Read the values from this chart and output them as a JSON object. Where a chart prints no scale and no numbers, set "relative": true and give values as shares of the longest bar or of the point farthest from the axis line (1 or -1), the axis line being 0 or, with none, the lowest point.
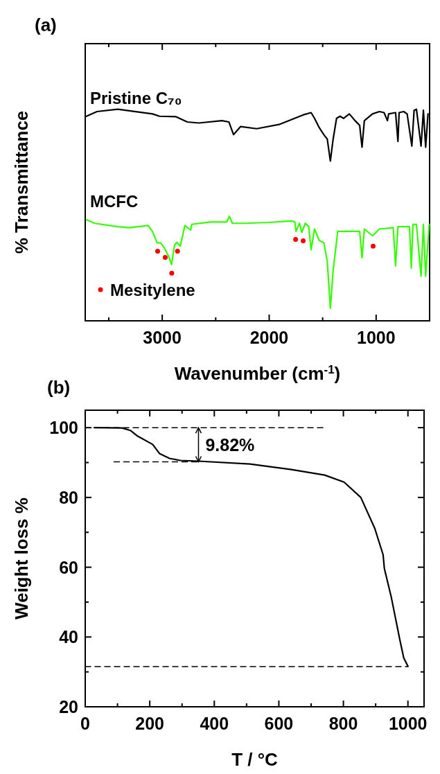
{
  "chart_data": [
    {
      "type": "line",
      "title": "(a)",
      "xlabel": "Wavenumber (cm$^{-1}$)",
      "ylabel": "% Transmittance",
      "relative": true,
      "legend": "bottom left",
      "xlim": [
        3720,
        500
      ],
      "xticks": [
        {
          "value": 3500,
          "label": null
        },
        3000,
        {
          "value": 2500,
          "label": null
        },
        2000,
        {
          "value": 1500,
          "label": null
        },
        1000
      ],
      "series": [
        {
          "name": "Pristine C₇₀",
          "color": "#000000",
          "x": [
            3708,
            3610,
            3416,
            3091,
            3026,
            2874,
            2766,
            2658,
            2442,
            2377,
            2333,
            2268,
            2117,
            1900,
            1684,
            1608,
            1576,
            1532,
            1489,
            1457,
            1428,
            1402,
            1370,
            1337,
            1305,
            1251,
            1197,
            1154,
            1132,
            1110,
            1034,
            969,
            926,
            894,
            883,
            818,
            796,
            785,
            742,
            710,
            666,
            645,
            623,
            580,
            558,
            537,
            515
          ],
          "values": [
            0.967,
            0.989,
            1,
            0.978,
            0.967,
            0.965,
            0.94,
            0.935,
            0.946,
            0.94,
            0.88,
            0.918,
            0.908,
            0.929,
            0.973,
            0.984,
            0.957,
            0.913,
            0.88,
            0.859,
            0.755,
            0.859,
            0.957,
            0.967,
            0.957,
            0.978,
            0.946,
            0.924,
            0.821,
            0.946,
            0.978,
            0.989,
            0.984,
            0.946,
            0.978,
            0.984,
            0.848,
            0.984,
            0.989,
            0.978,
            0.826,
            0.995,
            1,
            0.826,
            0.995,
            0.821,
            0.978
          ]
        },
        {
          "name": "MCFC",
          "color": "#33ff00",
          "x": [
            3708,
            3632,
            3416,
            3307,
            3134,
            3091,
            3048,
            3015,
            2983,
            2939,
            2913,
            2885,
            2864,
            2831,
            2788,
            2734,
            2723,
            2550,
            2398,
            2372,
            2344,
            2225,
            2008,
            1792,
            1760,
            1749,
            1716,
            1695,
            1662,
            1630,
            1608,
            1576,
            1532,
            1489,
            1457,
            1428,
            1402,
            1359,
            1251,
            1154,
            1132,
            1110,
            1034,
            1013,
            969,
            840,
            818,
            796,
            688,
            671,
            656,
            623,
            580,
            558,
            537,
            504
          ],
          "values": [
            0.478,
            0.461,
            0.445,
            0.44,
            0.451,
            0.423,
            0.369,
            0.369,
            0.347,
            0.304,
            0.266,
            0.358,
            0.371,
            0.353,
            0.451,
            0.429,
            0.456,
            0.467,
            0.467,
            0.494,
            0.461,
            0.461,
            0.465,
            0.472,
            0.467,
            0.423,
            0.461,
            0.418,
            0.461,
            0.445,
            0.336,
            0.434,
            0.38,
            0.369,
            0.282,
            0.059,
            0.238,
            0.423,
            0.423,
            0.423,
            0.298,
            0.434,
            0.402,
            0.412,
            0.434,
            0.44,
            0.26,
            0.445,
            0.445,
            0.249,
            0.456,
            0.456,
            0.211,
            0.456,
            0.211,
            0.456
          ]
        },
        {
          "name": "Mesitylene",
          "type": "scatter",
          "marker": "circle",
          "color": "#ff0000",
          "x": [
            3043,
            2972,
            2911,
            2857,
            1753,
            1682,
            1028
          ],
          "values": [
            0.329,
            0.3,
            0.225,
            0.329,
            0.385,
            0.378,
            0.353
          ]
        }
      ]
    },
    {
      "type": "line",
      "title": "(b)",
      "xlabel": "T / °C",
      "ylabel": "Weight loss %",
      "xlim": [
        0,
        1050
      ],
      "xticks": [
        0,
        {
          "value": 100,
          "label": null
        },
        200,
        {
          "value": 300,
          "label": null
        },
        400,
        {
          "value": 500,
          "label": null
        },
        600,
        {
          "value": 700,
          "label": null
        },
        800,
        {
          "value": 900,
          "label": null
        },
        1000
      ],
      "ylim": [
        20,
        105
      ],
      "yticks": [
        20,
        {
          "value": 30,
          "label": null
        },
        40,
        {
          "value": 50,
          "label": null
        },
        60,
        {
          "value": 70,
          "label": null
        },
        80,
        {
          "value": 90,
          "label": null
        },
        100
      ],
      "annotations": [
        "9.82%"
      ],
      "series": [
        {
          "color": "#000000",
          "x": [
            28,
            114,
            140,
            162,
            209,
            230,
            261,
            295,
            351,
            510,
            639,
            742,
            802,
            854,
            897,
            923,
            927,
            948,
            974,
            987,
            1000
          ],
          "values": [
            100,
            99.9,
            99.2,
            97.6,
            95.2,
            92.6,
            91.2,
            90.6,
            90.4,
            89.6,
            88,
            86.4,
            84.4,
            80,
            71.2,
            63.6,
            59.6,
            51.6,
            39.6,
            34,
            31.6
          ]
        },
        {
          "line_style": "dashed",
          "color": "#000000",
          "x": [
            28,
            742
          ],
          "values": [
            100,
            100
          ]
        },
        {
          "line_style": "dashed",
          "color": "#000000",
          "x": [
            89,
            351
          ],
          "values": [
            90.2,
            90.2
          ]
        },
        {
          "line_style": "dashed",
          "color": "#000000",
          "x": [
            0,
            1000
          ],
          "values": [
            31.5,
            31.5
          ]
        }
      ]
    }
  ]
}
